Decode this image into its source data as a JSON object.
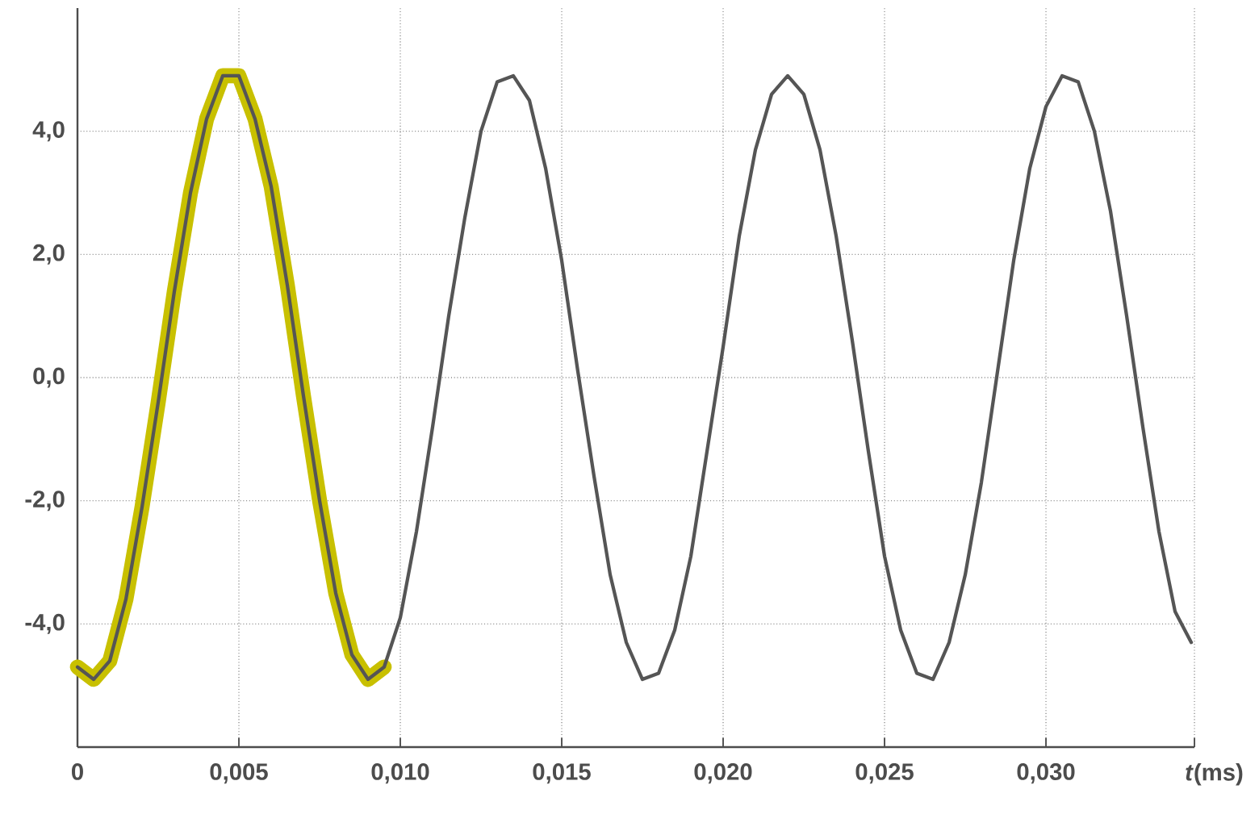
{
  "chart_data": {
    "type": "line",
    "xlabel": "*t*(ms)",
    "x": [
      0,
      0.0005,
      0.001,
      0.0015,
      0.002,
      0.0025,
      0.003,
      0.0035,
      0.004,
      0.0045,
      0.005,
      0.0055,
      0.006,
      0.0065,
      0.007,
      0.0075,
      0.008,
      0.0085,
      0.009,
      0.0095,
      0.01,
      0.0105,
      0.011,
      0.0115,
      0.012,
      0.0125,
      0.013,
      0.0135,
      0.014,
      0.0145,
      0.015,
      0.0155,
      0.016,
      0.0165,
      0.017,
      0.0175,
      0.018,
      0.0185,
      0.019,
      0.0195,
      0.02,
      0.0205,
      0.021,
      0.0215,
      0.022,
      0.0225,
      0.023,
      0.0235,
      0.024,
      0.0245,
      0.025,
      0.0255,
      0.026,
      0.0265,
      0.027,
      0.0275,
      0.028,
      0.0285,
      0.029,
      0.0295,
      0.03,
      0.0305,
      0.031,
      0.0315,
      0.032,
      0.0325,
      0.033,
      0.0335,
      0.034,
      0.0345
    ],
    "series": [
      {
        "color": "#c8c000",
        "x": [
          0,
          0.0005,
          0.001,
          0.0015,
          0.002,
          0.0025,
          0.003,
          0.0035,
          0.004,
          0.0045,
          0.005,
          0.0055,
          0.006,
          0.0065,
          0.007,
          0.0075,
          0.008,
          0.0085,
          0.009,
          0.0095
        ],
        "values": [
          -4.7,
          -4.9,
          -4.6,
          -3.6,
          -2.1,
          -0.4,
          1.4,
          3.0,
          4.2,
          4.9,
          4.9,
          4.2,
          3.1,
          1.5,
          -0.3,
          -2.0,
          -3.5,
          -4.5,
          -4.9,
          -4.7
        ]
      },
      {
        "color": "#555555",
        "values": [
          -4.7,
          -4.9,
          -4.6,
          -3.6,
          -2.1,
          -0.4,
          1.4,
          3.0,
          4.2,
          4.9,
          4.9,
          4.2,
          3.1,
          1.5,
          -0.3,
          -2.0,
          -3.5,
          -4.5,
          -4.9,
          -4.7,
          -3.9,
          -2.5,
          -0.8,
          1.0,
          2.6,
          4.0,
          4.8,
          4.9,
          4.5,
          3.4,
          1.9,
          0.1,
          -1.6,
          -3.2,
          -4.3,
          -4.9,
          -4.8,
          -4.1,
          -2.9,
          -1.2,
          0.5,
          2.3,
          3.7,
          4.6,
          4.9,
          4.6,
          3.7,
          2.3,
          0.6,
          -1.2,
          -2.9,
          -4.1,
          -4.8,
          -4.9,
          -4.3,
          -3.2,
          -1.7,
          0.1,
          1.9,
          3.4,
          4.4,
          4.9,
          4.8,
          4.0,
          2.7,
          1.0,
          -0.8,
          -2.5,
          -3.8,
          -4.3
        ]
      }
    ],
    "xlim": [
      0,
      0.0346
    ],
    "xticks": [
      0,
      {
        "value": 0.005,
        "label": "0,005"
      },
      {
        "value": 0.01,
        "label": "0,010"
      },
      {
        "value": 0.015,
        "label": "0,015"
      },
      {
        "value": 0.02,
        "label": "0,020"
      },
      {
        "value": 0.025,
        "label": "0,025"
      },
      {
        "value": 0.03,
        "label": "0,030"
      },
      {
        "value": 0.0346,
        "label": null
      }
    ],
    "ylim": [
      -6,
      6
    ],
    "yticks": [
      {
        "value": -4,
        "label": "-4,0"
      },
      {
        "value": -2,
        "label": "-2,0"
      },
      {
        "value": 0,
        "label": "0,0"
      },
      {
        "value": 2,
        "label": "2,0"
      },
      {
        "value": 4,
        "label": "4,0"
      }
    ],
    "grid": true,
    "line_style": "solid",
    "marker": "none"
  }
}
